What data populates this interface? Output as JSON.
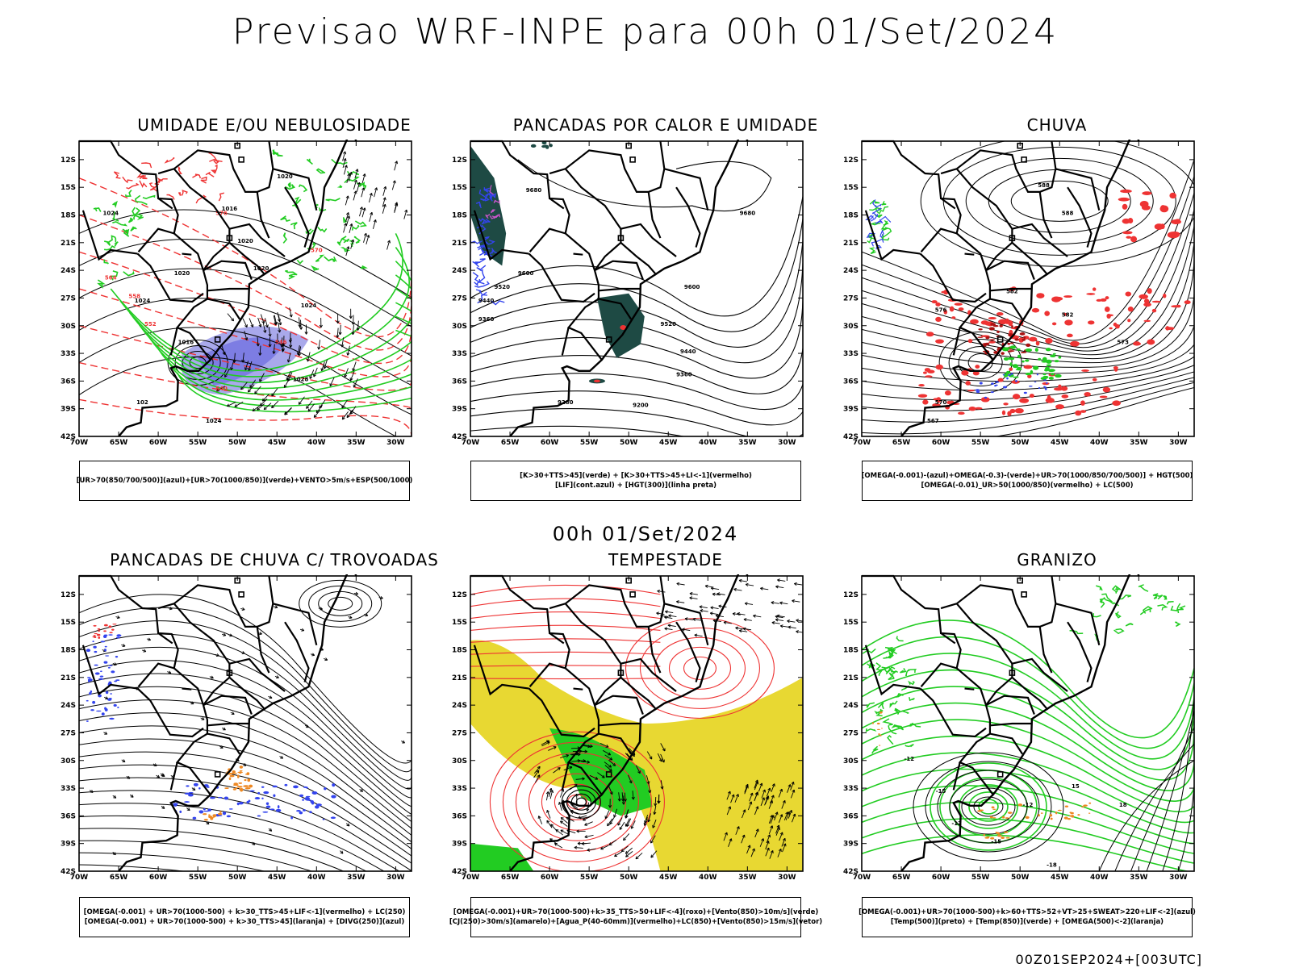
{
  "main_title": "Previsao WRF-INPE  para 00h 01/Set/2024",
  "middle_title": "00h 01/Set/2024",
  "footer_code": "00Z01SEP2024+[003UTC]",
  "axis": {
    "lat_labels": [
      "12S",
      "15S",
      "18S",
      "21S",
      "24S",
      "27S",
      "30S",
      "33S",
      "36S",
      "39S",
      "42S"
    ],
    "lon_labels": [
      "70W",
      "65W",
      "60W",
      "55W",
      "50W",
      "45W",
      "40W",
      "35W",
      "30W"
    ]
  },
  "colors": {
    "boundary": "#000000",
    "blue": "#3344ee",
    "violet_shade": "#9a9ae8",
    "green": "#22cc22",
    "red": "#ee3333",
    "dark_teal": "#1e4a44",
    "yellow": "#e8d832",
    "orange": "#ee8822"
  },
  "panels": [
    {
      "id": "umidade",
      "title": "UMIDADE E/OU NEBULOSIDADE",
      "legend": [
        "[UR>70(850/700/500)](azul)+[UR>70(1000/850)](verde)+VENTO>5m/s+ESP(500/1000)"
      ],
      "contour_labels": [
        "1020",
        "1016",
        "1020",
        "1024",
        "1020",
        "1020",
        "1024",
        "1024",
        "1016",
        "1028",
        "1024",
        "102"
      ],
      "red_labels": [
        "576",
        "570",
        "564",
        "558",
        "552",
        "546",
        "540"
      ]
    },
    {
      "id": "pancadas-calor",
      "title": "PANCADAS POR CALOR E UMIDADE",
      "legend": [
        "[K>30+TTS>45](verde) + [K>30+TTS>45+LI<-1](vermelho)",
        "[LIF](cont.azul) + [HGT(300)](linha preta)"
      ],
      "contour_labels": [
        "9680",
        "9600",
        "9520",
        "9440",
        "9360",
        "9280",
        "9200",
        "9680",
        "9600",
        "9520",
        "9440",
        "9360"
      ]
    },
    {
      "id": "chuva",
      "title": "CHUVA",
      "legend": [
        "[OMEGA(-0.001)-(azul)+OMEGA(-0.3)-(verde)+UR>70(1000/850/700/500)] + HGT(500)",
        "[OMEGA(-0.01)_UR>50(1000/850)(vermelho) + LC(500)"
      ],
      "contour_labels": [
        "588",
        "588",
        "582",
        "576",
        "570",
        "573",
        "567",
        "582"
      ]
    },
    {
      "id": "pancadas-trovoadas",
      "title": "PANCADAS DE CHUVA C/ TROVOADAS",
      "legend": [
        "[OMEGA(-0.001) + UR>70(1000-500) + k>30_TTS>45+LIF<-1](vermelho) + LC(250)",
        "[OMEGA(-0.001) + UR>70(1000-500) + k>30_TTS>45](laranja) + [DIVG(250)](azul)"
      ]
    },
    {
      "id": "tempestade",
      "title": "TEMPESTADE",
      "legend": [
        "[OMEGA(-0.001)+UR>70(1000-500)+k>35_TTS>50+LIF<-4](roxo)+[Vento(850)>10m/s](verde)",
        "[CJ(250)>30m/s](amarelo)+[Agua_P(40-60mm)](vermelho)+LC(850)+[Vento(850)>15m/s](vetor)"
      ]
    },
    {
      "id": "granizo",
      "title": "GRANIZO",
      "legend": [
        "[OMEGA(-0.001)+UR>70(1000-500)+k>60+TTS>52+VT>25+SWEAT>220+LIF<-2](azul)",
        "[Temp(500)](preto) + [Temp(850)](verde) + [OMEGA(500)<-2](laranja)"
      ],
      "contour_labels": [
        "-12",
        "-15",
        "-12",
        "-15",
        "-12",
        "-18",
        "18",
        "15"
      ]
    }
  ]
}
